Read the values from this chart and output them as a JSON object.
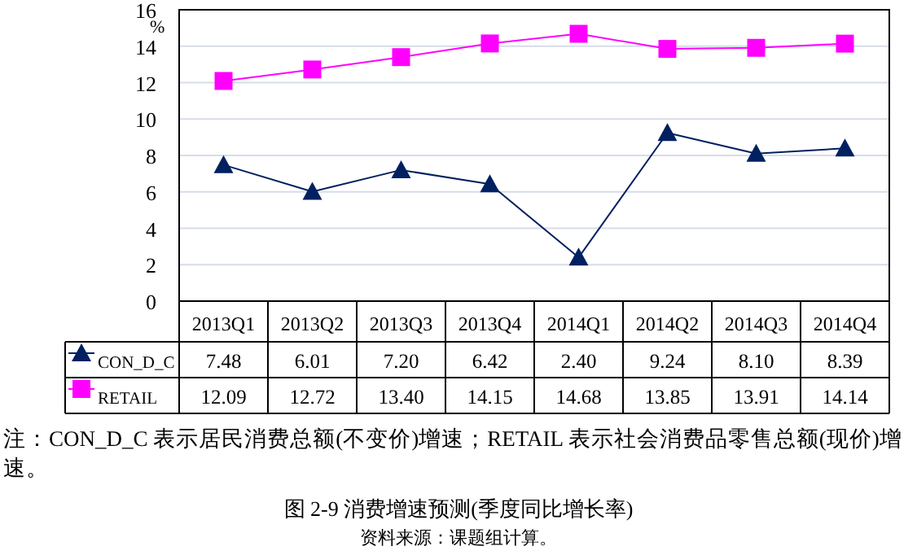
{
  "chart_data": {
    "type": "line",
    "title": "图 2-9 消费增速预测(季度同比增长率)",
    "ylabel": "%",
    "categories": [
      "2013Q1",
      "2013Q2",
      "2013Q3",
      "2013Q4",
      "2014Q1",
      "2014Q2",
      "2014Q3",
      "2014Q4"
    ],
    "series": [
      {
        "name": "CON_D_C",
        "color": "#002060",
        "marker": "triangle",
        "values": [
          7.48,
          6.01,
          7.2,
          6.42,
          2.4,
          9.24,
          8.1,
          8.39
        ],
        "value_labels": [
          "7.48",
          "6.01",
          "7.20",
          "6.42",
          "2.40",
          "9.24",
          "8.10",
          "8.39"
        ]
      },
      {
        "name": "RETAIL",
        "color": "#ff00ff",
        "marker": "square",
        "values": [
          12.09,
          12.72,
          13.4,
          14.15,
          14.68,
          13.85,
          13.91,
          14.14
        ],
        "value_labels": [
          "12.09",
          "12.72",
          "13.40",
          "14.15",
          "14.68",
          "13.85",
          "13.91",
          "14.14"
        ]
      }
    ],
    "ylim": [
      0,
      16
    ],
    "yticks": [
      0,
      2,
      4,
      6,
      8,
      10,
      12,
      14,
      16
    ],
    "grid": "y",
    "legend": "bottom",
    "annotations": [
      "注：CON_D_C 表示居民消费总额(不变价)增速；RETAIL 表示社会消费品零售总额(现价)增速。",
      "资料来源：课题组计算。"
    ]
  }
}
